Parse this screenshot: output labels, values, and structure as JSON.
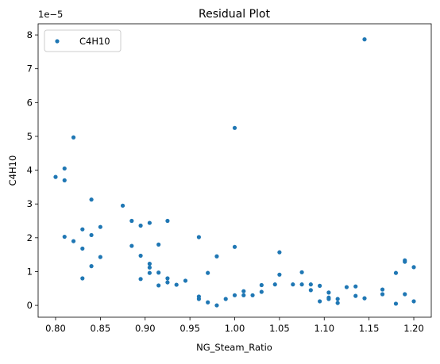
{
  "chart_data": {
    "type": "scatter",
    "title": "Residual Plot",
    "x_label": "NG_Steam_Ratio",
    "y_label": "C4H10",
    "y_offset_label": "1e−5",
    "legend": "upper left",
    "xlim": [
      0.7805,
      1.2195
    ],
    "ylim": [
      -0.35,
      8.33
    ],
    "xticks": [
      {
        "value": 0.8,
        "label": "0.80"
      },
      0.85,
      {
        "value": 0.9,
        "label": "0.90"
      },
      0.95,
      {
        "value": 1.0,
        "label": "1.00"
      },
      1.05,
      {
        "value": 1.1,
        "label": "1.10"
      },
      1.15,
      {
        "value": 1.2,
        "label": "1.20"
      }
    ],
    "yticks": [
      0,
      1,
      2,
      3,
      4,
      5,
      6,
      7,
      8
    ],
    "series": [
      {
        "name": "C4H10",
        "color": "#1f77b4",
        "x": [
          0.8,
          0.81,
          0.81,
          0.81,
          0.82,
          0.82,
          0.83,
          0.83,
          0.83,
          0.84,
          0.84,
          0.84,
          0.85,
          0.85,
          0.875,
          0.885,
          0.885,
          0.895,
          0.895,
          0.895,
          0.905,
          0.905,
          0.905,
          0.905,
          0.915,
          0.915,
          0.915,
          0.925,
          0.925,
          0.925,
          0.935,
          0.945,
          0.96,
          0.96,
          0.96,
          0.97,
          0.97,
          0.98,
          0.98,
          0.99,
          1.0,
          1.0,
          1.0,
          1.01,
          1.01,
          1.02,
          1.03,
          1.03,
          1.045,
          1.05,
          1.05,
          1.065,
          1.075,
          1.075,
          1.085,
          1.085,
          1.095,
          1.095,
          1.105,
          1.105,
          1.105,
          1.115,
          1.115,
          1.125,
          1.135,
          1.135,
          1.145,
          1.145,
          1.165,
          1.165,
          1.18,
          1.18,
          1.19,
          1.19,
          1.19,
          1.2,
          1.2
        ],
        "values": [
          3.8,
          4.05,
          3.7,
          2.03,
          4.97,
          1.9,
          2.25,
          1.68,
          0.8,
          3.13,
          2.08,
          1.16,
          2.32,
          1.43,
          2.95,
          2.5,
          1.76,
          2.36,
          1.47,
          0.78,
          2.44,
          1.23,
          1.12,
          0.96,
          1.8,
          0.97,
          0.59,
          2.5,
          0.8,
          0.68,
          0.61,
          0.73,
          2.02,
          0.26,
          0.19,
          0.96,
          0.09,
          1.45,
          0.0,
          0.19,
          5.25,
          1.73,
          0.3,
          0.42,
          0.3,
          0.3,
          0.6,
          0.4,
          0.62,
          1.57,
          0.91,
          0.62,
          0.98,
          0.62,
          0.62,
          0.45,
          0.58,
          0.12,
          0.38,
          0.23,
          0.19,
          0.19,
          0.07,
          0.54,
          0.56,
          0.28,
          7.87,
          0.21,
          0.47,
          0.33,
          0.96,
          0.05,
          1.33,
          1.29,
          0.33,
          1.13,
          0.12
        ]
      }
    ]
  }
}
